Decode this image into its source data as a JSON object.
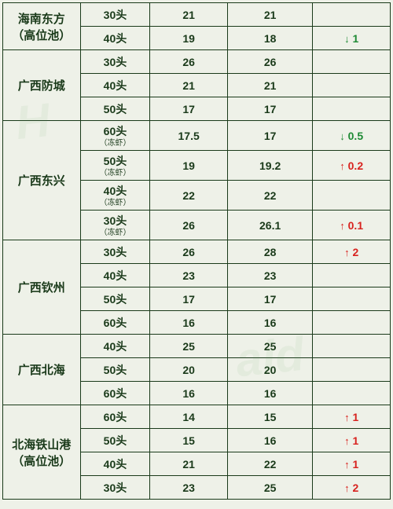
{
  "colors": {
    "background": "#eef1e8",
    "border": "#1a3a1a",
    "text": "#1a3a1a",
    "up": "#d8231f",
    "down": "#1e8a34"
  },
  "arrows": {
    "up": "↑",
    "down": "↓"
  },
  "regions": [
    {
      "name": "海南东方\n（高位池）",
      "rows": [
        {
          "spec": "30头",
          "p1": "21",
          "p2": "21",
          "delta": ""
        },
        {
          "spec": "40头",
          "p1": "19",
          "p2": "18",
          "delta": "down:1"
        }
      ]
    },
    {
      "name": "广西防城",
      "rows": [
        {
          "spec": "30头",
          "p1": "26",
          "p2": "26",
          "delta": ""
        },
        {
          "spec": "40头",
          "p1": "21",
          "p2": "21",
          "delta": ""
        },
        {
          "spec": "50头",
          "p1": "17",
          "p2": "17",
          "delta": ""
        }
      ]
    },
    {
      "name": "广西东兴",
      "rows": [
        {
          "spec": "60头",
          "sub": "（冻虾）",
          "p1": "17.5",
          "p2": "17",
          "delta": "down:0.5"
        },
        {
          "spec": "50头",
          "sub": "（冻虾）",
          "p1": "19",
          "p2": "19.2",
          "delta": "up:0.2"
        },
        {
          "spec": "40头",
          "sub": "（冻虾）",
          "p1": "22",
          "p2": "22",
          "delta": ""
        },
        {
          "spec": "30头",
          "sub": "（冻虾）",
          "p1": "26",
          "p2": "26.1",
          "delta": "up:0.1"
        }
      ]
    },
    {
      "name": "广西钦州",
      "rows": [
        {
          "spec": "30头",
          "p1": "26",
          "p2": "28",
          "delta": "up:2"
        },
        {
          "spec": "40头",
          "p1": "23",
          "p2": "23",
          "delta": ""
        },
        {
          "spec": "50头",
          "p1": "17",
          "p2": "17",
          "delta": ""
        },
        {
          "spec": "60头",
          "p1": "16",
          "p2": "16",
          "delta": ""
        }
      ]
    },
    {
      "name": "广西北海",
      "rows": [
        {
          "spec": "40头",
          "p1": "25",
          "p2": "25",
          "delta": ""
        },
        {
          "spec": "50头",
          "p1": "20",
          "p2": "20",
          "delta": ""
        },
        {
          "spec": "60头",
          "p1": "16",
          "p2": "16",
          "delta": ""
        }
      ]
    },
    {
      "name": "北海铁山港\n（高位池）",
      "rows": [
        {
          "spec": "60头",
          "p1": "14",
          "p2": "15",
          "delta": "up:1"
        },
        {
          "spec": "50头",
          "p1": "15",
          "p2": "16",
          "delta": "up:1"
        },
        {
          "spec": "40头",
          "p1": "21",
          "p2": "22",
          "delta": "up:1"
        },
        {
          "spec": "30头",
          "p1": "23",
          "p2": "25",
          "delta": "up:2"
        }
      ]
    }
  ]
}
